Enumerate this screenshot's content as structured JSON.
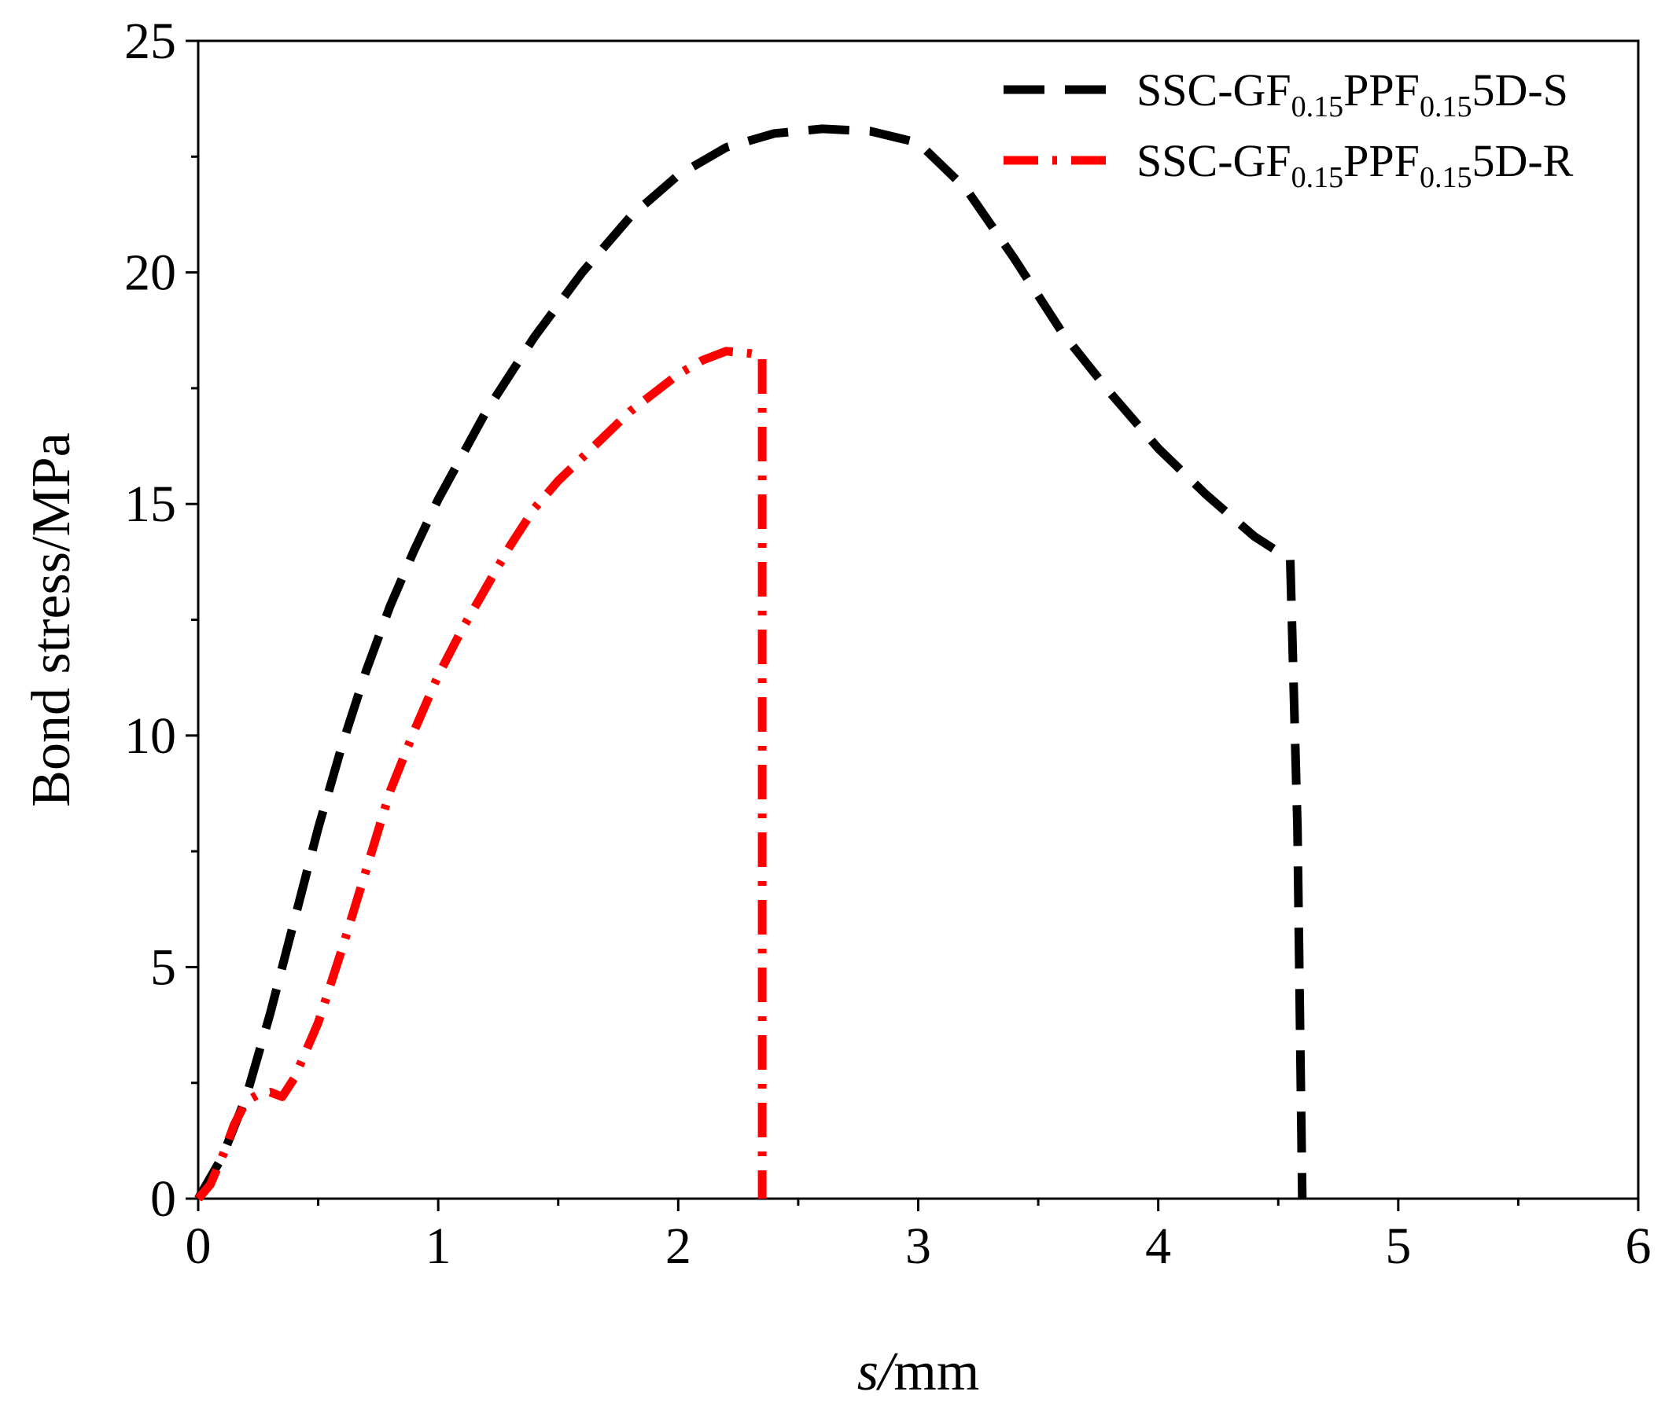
{
  "chart_data": {
    "type": "line",
    "title": "",
    "xlabel_italic": "s",
    "xlabel_rest": "mm",
    "ylabel": "Bond stress/MPa",
    "xlim": [
      0,
      6
    ],
    "ylim": [
      0,
      25
    ],
    "xticks": [
      0,
      1,
      2,
      3,
      4,
      5,
      6
    ],
    "yticks": [
      0,
      5,
      10,
      15,
      20,
      25
    ],
    "grid": false,
    "legend_position": "top-right",
    "series": [
      {
        "name": "SSC-GF0.15PPF0.155D-S",
        "legend_parts": [
          "SSC-GF",
          "0.15",
          "PPF",
          "0.15",
          "5D-S"
        ],
        "color": "#000000",
        "style": "dash",
        "points": [
          [
            0.0,
            0.0
          ],
          [
            0.1,
            0.9
          ],
          [
            0.2,
            2.2
          ],
          [
            0.3,
            4.0
          ],
          [
            0.4,
            6.0
          ],
          [
            0.5,
            8.0
          ],
          [
            0.6,
            9.8
          ],
          [
            0.7,
            11.4
          ],
          [
            0.8,
            12.8
          ],
          [
            0.9,
            14.0
          ],
          [
            1.0,
            15.1
          ],
          [
            1.2,
            17.0
          ],
          [
            1.4,
            18.6
          ],
          [
            1.6,
            20.0
          ],
          [
            1.8,
            21.2
          ],
          [
            2.0,
            22.1
          ],
          [
            2.2,
            22.7
          ],
          [
            2.4,
            23.0
          ],
          [
            2.6,
            23.1
          ],
          [
            2.8,
            23.05
          ],
          [
            3.0,
            22.8
          ],
          [
            3.2,
            21.8
          ],
          [
            3.4,
            20.3
          ],
          [
            3.6,
            18.7
          ],
          [
            3.8,
            17.4
          ],
          [
            4.0,
            16.2
          ],
          [
            4.2,
            15.2
          ],
          [
            4.4,
            14.3
          ],
          [
            4.55,
            13.8
          ],
          [
            4.58,
            8.0
          ],
          [
            4.6,
            0.0
          ]
        ]
      },
      {
        "name": "SSC-GF0.15PPF0.155D-R",
        "legend_parts": [
          "SSC-GF",
          "0.15",
          "PPF",
          "0.15",
          "5D-R"
        ],
        "color": "#ff0000",
        "style": "dashdot",
        "points": [
          [
            0.0,
            0.0
          ],
          [
            0.05,
            0.3
          ],
          [
            0.1,
            0.9
          ],
          [
            0.15,
            1.6
          ],
          [
            0.2,
            2.1
          ],
          [
            0.25,
            2.25
          ],
          [
            0.3,
            2.3
          ],
          [
            0.35,
            2.2
          ],
          [
            0.4,
            2.6
          ],
          [
            0.5,
            3.8
          ],
          [
            0.6,
            5.4
          ],
          [
            0.7,
            7.1
          ],
          [
            0.8,
            8.8
          ],
          [
            0.9,
            10.1
          ],
          [
            1.0,
            11.3
          ],
          [
            1.1,
            12.3
          ],
          [
            1.2,
            13.2
          ],
          [
            1.3,
            14.1
          ],
          [
            1.4,
            14.9
          ],
          [
            1.5,
            15.5
          ],
          [
            1.6,
            16.0
          ],
          [
            1.7,
            16.5
          ],
          [
            1.8,
            17.0
          ],
          [
            1.9,
            17.4
          ],
          [
            2.0,
            17.8
          ],
          [
            2.1,
            18.1
          ],
          [
            2.2,
            18.3
          ],
          [
            2.3,
            18.25
          ],
          [
            2.35,
            18.2
          ],
          [
            2.35,
            10.0
          ],
          [
            2.35,
            0.0
          ]
        ]
      }
    ]
  }
}
